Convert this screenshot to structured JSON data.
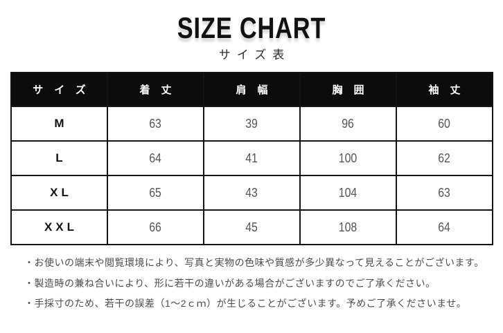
{
  "chart_data": {
    "type": "table",
    "title": "SIZE CHART",
    "subtitle": "サイズ表",
    "columns": [
      "サイズ",
      "着丈",
      "肩幅",
      "胸囲",
      "袖丈"
    ],
    "rows": [
      [
        "M",
        "63",
        "39",
        "96",
        "60"
      ],
      [
        "L",
        "64",
        "41",
        "100",
        "62"
      ],
      [
        "XL",
        "65",
        "43",
        "104",
        "63"
      ],
      [
        "XXL",
        "66",
        "45",
        "108",
        "64"
      ]
    ],
    "notes": [
      "・お使いの端末や閲覧環境により、写真と実物の色味や質感が多少異なって見えることがございます。",
      "・製造時の兼ね合いにより、形に若干の違いがある場合がございますのでご了承ください。",
      "・手採寸のため、若干の誤差（1～2ｃｍ）が生じることがございます。予めご了承くださいませ。"
    ],
    "layout_hints": {
      "header_style": "black background, white letter-spaced text",
      "grid": "2px black borders, 5 equal columns"
    }
  },
  "colors": {
    "title_text": "#111111",
    "header_bg": "#0c0c0c",
    "header_text": "#ffffff",
    "table_border": "#141414",
    "size_text": "#111111",
    "value_text": "#555555",
    "note_text": "#4c4c4c"
  }
}
